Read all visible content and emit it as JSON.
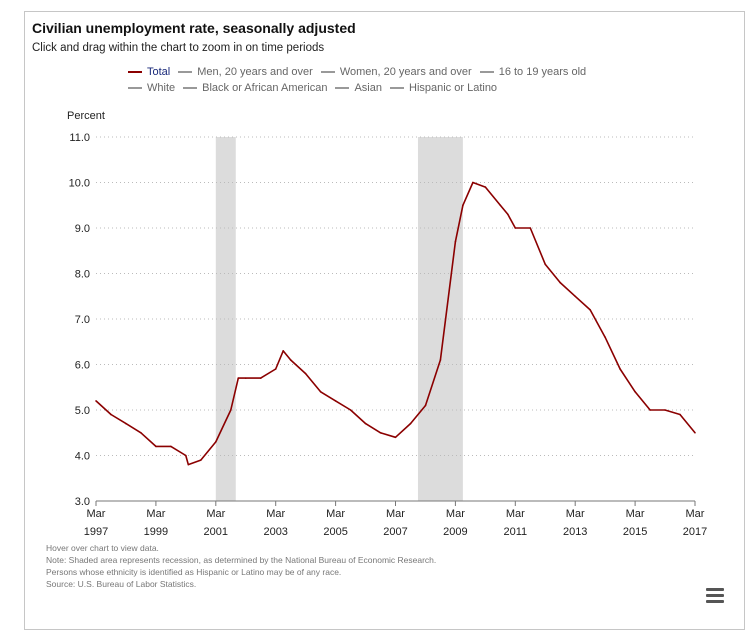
{
  "header": {
    "title": "Civilian unemployment rate, seasonally adjusted",
    "subtitle": "Click and drag within the chart to zoom in on time periods"
  },
  "legend": {
    "row1": [
      "Total",
      "Men, 20 years and over",
      "Women, 20 years and over",
      "16 to 19 years old"
    ],
    "row2": [
      "White",
      "Black or African American",
      "Asian",
      "Hispanic or Latino"
    ]
  },
  "footer": {
    "notes": [
      "Hover over chart to view data.",
      "Note: Shaded area represents recession, as determined by the National Bureau of Economic Research.",
      "Persons whose ethnicity is identified as Hispanic or Latino may be of any race.",
      "Source: U.S. Bureau of Labor Statistics."
    ],
    "menu_icon": "hamburger-menu-icon"
  },
  "chart_data": {
    "type": "line",
    "title": "Civilian unemployment rate, seasonally adjusted",
    "ylabel": "Percent",
    "xlabel": "",
    "ylim": [
      3.0,
      11.0
    ],
    "yticks": [
      "3.0",
      "4.0",
      "5.0",
      "6.0",
      "7.0",
      "8.0",
      "9.0",
      "10.0",
      "11.0"
    ],
    "xticks": [
      {
        "month": "Mar",
        "year": "1997"
      },
      {
        "month": "Mar",
        "year": "1999"
      },
      {
        "month": "Mar",
        "year": "2001"
      },
      {
        "month": "Mar",
        "year": "2003"
      },
      {
        "month": "Mar",
        "year": "2005"
      },
      {
        "month": "Mar",
        "year": "2007"
      },
      {
        "month": "Mar",
        "year": "2009"
      },
      {
        "month": "Mar",
        "year": "2011"
      },
      {
        "month": "Mar",
        "year": "2013"
      },
      {
        "month": "Mar",
        "year": "2015"
      },
      {
        "month": "Mar",
        "year": "2017"
      }
    ],
    "grid": "horizontal dotted",
    "legend_position": "top",
    "recessions": [
      {
        "start": "2001-03",
        "end": "2001-11"
      },
      {
        "start": "2007-12",
        "end": "2009-06"
      }
    ],
    "series": [
      {
        "name": "Total",
        "color": "#8b0000",
        "x": [
          "1997-03",
          "1997-09",
          "1998-03",
          "1998-09",
          "1999-03",
          "1999-09",
          "2000-03",
          "2000-04",
          "2000-09",
          "2001-03",
          "2001-09",
          "2001-12",
          "2002-03",
          "2002-09",
          "2003-03",
          "2003-06",
          "2003-09",
          "2004-03",
          "2004-09",
          "2005-03",
          "2005-09",
          "2006-03",
          "2006-09",
          "2007-03",
          "2007-09",
          "2008-03",
          "2008-09",
          "2009-03",
          "2009-06",
          "2009-10",
          "2010-03",
          "2010-09",
          "2010-12",
          "2011-03",
          "2011-09",
          "2012-03",
          "2012-09",
          "2013-03",
          "2013-09",
          "2014-03",
          "2014-09",
          "2015-03",
          "2015-09",
          "2016-03",
          "2016-09",
          "2017-03"
        ],
        "values": [
          5.2,
          4.9,
          4.7,
          4.5,
          4.2,
          4.2,
          4.0,
          3.8,
          3.9,
          4.3,
          5.0,
          5.7,
          5.7,
          5.7,
          5.9,
          6.3,
          6.1,
          5.8,
          5.4,
          5.2,
          5.0,
          4.7,
          4.5,
          4.4,
          4.7,
          5.1,
          6.1,
          8.7,
          9.5,
          10.0,
          9.9,
          9.5,
          9.3,
          9.0,
          9.0,
          8.2,
          7.8,
          7.5,
          7.2,
          6.6,
          5.9,
          5.4,
          5.0,
          5.0,
          4.9,
          4.5
        ]
      }
    ]
  }
}
